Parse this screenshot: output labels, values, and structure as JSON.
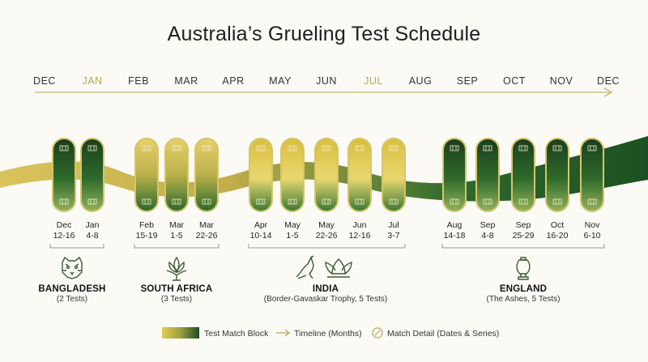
{
  "title": "Australia’s Grueling Test Schedule",
  "months": [
    {
      "label": "DEC",
      "highlight": false
    },
    {
      "label": "JAN",
      "highlight": true
    },
    {
      "label": "FEB",
      "highlight": false
    },
    {
      "label": "MAR",
      "highlight": false
    },
    {
      "label": "APR",
      "highlight": false
    },
    {
      "label": "MAY",
      "highlight": false
    },
    {
      "label": "JUN",
      "highlight": false
    },
    {
      "label": "JUL",
      "highlight": true
    },
    {
      "label": "AUG",
      "highlight": false
    },
    {
      "label": "SEP",
      "highlight": false
    },
    {
      "label": "OCT",
      "highlight": false
    },
    {
      "label": "NOV",
      "highlight": false
    },
    {
      "label": "DEC",
      "highlight": false
    }
  ],
  "matches": [
    {
      "month": "Dec",
      "days": "12-16",
      "style": "green"
    },
    {
      "month": "Jan",
      "days": "4-8",
      "style": "green"
    },
    {
      "month": "Feb",
      "days": "15-19",
      "style": "gold-green"
    },
    {
      "month": "Mar",
      "days": "1-5",
      "style": "gold-green"
    },
    {
      "month": "Mar",
      "days": "22-26",
      "style": "gold-green"
    },
    {
      "month": "Apr",
      "days": "10-14",
      "style": "gold"
    },
    {
      "month": "May",
      "days": "1-5",
      "style": "gold"
    },
    {
      "month": "May",
      "days": "22-26",
      "style": "gold"
    },
    {
      "month": "Jun",
      "days": "12-16",
      "style": "gold"
    },
    {
      "month": "Jul",
      "days": "3-7",
      "style": "gold"
    },
    {
      "month": "Aug",
      "days": "14-18",
      "style": "green"
    },
    {
      "month": "Sep",
      "days": "4-8",
      "style": "green"
    },
    {
      "month": "Sep",
      "days": "25-29",
      "style": "green"
    },
    {
      "month": "Oct",
      "days": "16-20",
      "style": "green"
    },
    {
      "month": "Nov",
      "days": "6-10",
      "style": "green"
    }
  ],
  "series": [
    {
      "name": "BANGLADESH",
      "detail": "(2 Tests)",
      "icon": "tiger-icon"
    },
    {
      "name": "SOUTH AFRICA",
      "detail": "(3 Tests)",
      "icon": "protea-icon"
    },
    {
      "name": "INDIA",
      "detail": "(Border-Gavaskar Trophy, 5 Tests)",
      "icon": "kangaroo-lotus-icon"
    },
    {
      "name": "ENGLAND",
      "detail": "(The Ashes, 5 Tests)",
      "icon": "ashes-urn-icon"
    }
  ],
  "legend": {
    "block_label": "Test Match Block",
    "timeline_label": "Timeline (Months)",
    "detail_label": "Match Detail (Dates & Series)"
  },
  "colors": {
    "green_dark": "#1d4a22",
    "green_mid": "#3a7a35",
    "gold": "#e3cc55",
    "gold_dark": "#b7a242",
    "ribbon_gold": "#c9b44f",
    "ribbon_green": "#1f5a25"
  }
}
